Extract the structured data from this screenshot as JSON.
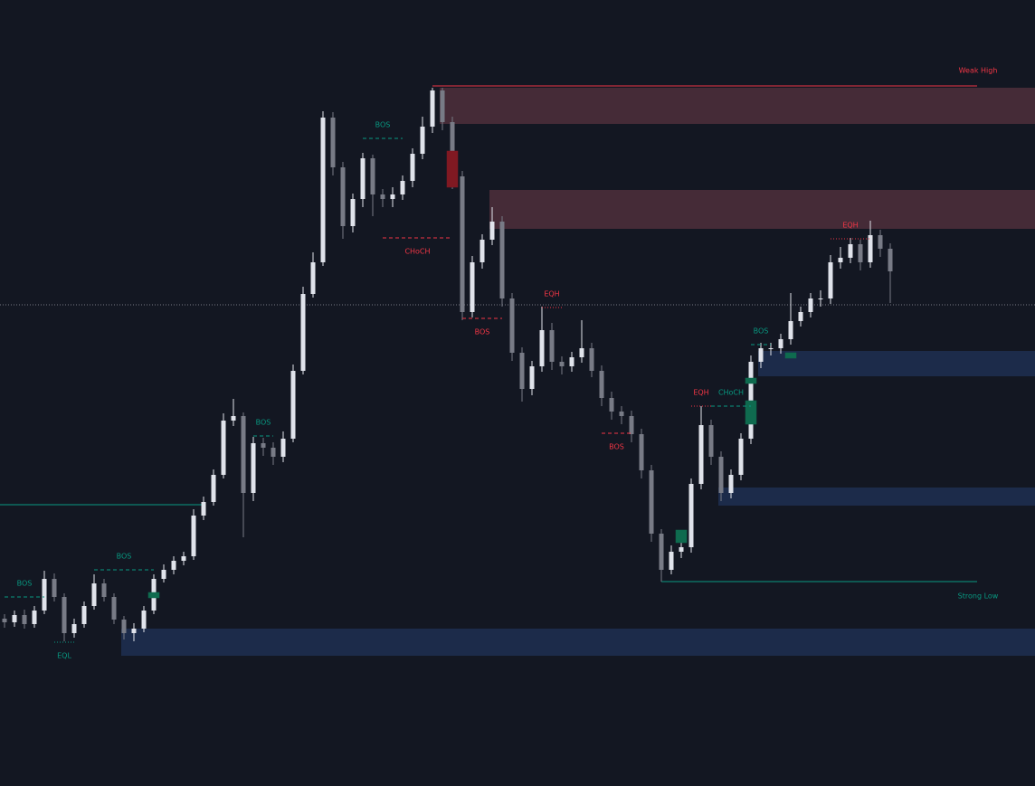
{
  "chart_data": {
    "type": "candlestick",
    "ylim": [
      0,
      869
    ],
    "up_color": "#e0e3eb",
    "down_color": "#787b86",
    "candles": [
      [
        185,
        190,
        175,
        181
      ],
      [
        181,
        194,
        176,
        189
      ],
      [
        189,
        195,
        174,
        179
      ],
      [
        179,
        199,
        175,
        194
      ],
      [
        194,
        238,
        190,
        229
      ],
      [
        229,
        235,
        204,
        209
      ],
      [
        209,
        213,
        160,
        169
      ],
      [
        169,
        185,
        164,
        179
      ],
      [
        179,
        204,
        175,
        199
      ],
      [
        199,
        234,
        195,
        224
      ],
      [
        224,
        229,
        204,
        209
      ],
      [
        209,
        213,
        179,
        184
      ],
      [
        184,
        188,
        162,
        169
      ],
      [
        169,
        180,
        160,
        174
      ],
      [
        174,
        199,
        170,
        194
      ],
      [
        194,
        234,
        190,
        229
      ],
      [
        229,
        245,
        225,
        239
      ],
      [
        239,
        254,
        234,
        249
      ],
      [
        249,
        259,
        244,
        254
      ],
      [
        254,
        306,
        250,
        299
      ],
      [
        299,
        320,
        294,
        314
      ],
      [
        314,
        350,
        310,
        344
      ],
      [
        344,
        412,
        340,
        404
      ],
      [
        404,
        428,
        398,
        409
      ],
      [
        409,
        413,
        275,
        324
      ],
      [
        324,
        386,
        315,
        379
      ],
      [
        379,
        385,
        365,
        374
      ],
      [
        374,
        380,
        355,
        364
      ],
      [
        364,
        392,
        358,
        384
      ],
      [
        384,
        466,
        380,
        459
      ],
      [
        459,
        552,
        455,
        544
      ],
      [
        544,
        590,
        540,
        579
      ],
      [
        579,
        746,
        575,
        739
      ],
      [
        739,
        745,
        675,
        684
      ],
      [
        684,
        690,
        605,
        619
      ],
      [
        619,
        655,
        612,
        649
      ],
      [
        649,
        700,
        640,
        694
      ],
      [
        694,
        698,
        630,
        654
      ],
      [
        654,
        660,
        640,
        649
      ],
      [
        649,
        662,
        640,
        654
      ],
      [
        654,
        675,
        648,
        669
      ],
      [
        669,
        705,
        662,
        699
      ],
      [
        699,
        740,
        693,
        729
      ],
      [
        729,
        772,
        722,
        769
      ],
      [
        769,
        772,
        725,
        734
      ],
      [
        734,
        740,
        660,
        674
      ],
      [
        674,
        680,
        515,
        524
      ],
      [
        524,
        586,
        518,
        579
      ],
      [
        579,
        610,
        572,
        604
      ],
      [
        604,
        640,
        598,
        624
      ],
      [
        624,
        630,
        530,
        539
      ],
      [
        539,
        545,
        470,
        479
      ],
      [
        479,
        485,
        425,
        439
      ],
      [
        439,
        470,
        432,
        464
      ],
      [
        464,
        530,
        458,
        504
      ],
      [
        504,
        512,
        460,
        469
      ],
      [
        469,
        475,
        455,
        464
      ],
      [
        464,
        480,
        458,
        474
      ],
      [
        474,
        515,
        468,
        484
      ],
      [
        484,
        490,
        452,
        459
      ],
      [
        459,
        465,
        420,
        429
      ],
      [
        429,
        436,
        405,
        414
      ],
      [
        414,
        420,
        400,
        409
      ],
      [
        409,
        415,
        380,
        389
      ],
      [
        389,
        395,
        340,
        349
      ],
      [
        349,
        355,
        270,
        279
      ],
      [
        279,
        284,
        226,
        239
      ],
      [
        239,
        266,
        234,
        259
      ],
      [
        259,
        275,
        252,
        264
      ],
      [
        264,
        340,
        258,
        334
      ],
      [
        334,
        420,
        328,
        399
      ],
      [
        399,
        405,
        355,
        364
      ],
      [
        364,
        370,
        315,
        324
      ],
      [
        324,
        350,
        318,
        344
      ],
      [
        344,
        390,
        338,
        384
      ],
      [
        384,
        476,
        378,
        469
      ],
      [
        469,
        490,
        462,
        484
      ],
      [
        484,
        490,
        476,
        484
      ],
      [
        484,
        500,
        478,
        494
      ],
      [
        494,
        545,
        488,
        514
      ],
      [
        514,
        530,
        508,
        524
      ],
      [
        524,
        545,
        518,
        539
      ],
      [
        539,
        548,
        530,
        539
      ],
      [
        539,
        587,
        533,
        579
      ],
      [
        579,
        596,
        572,
        584
      ],
      [
        584,
        606,
        578,
        599
      ],
      [
        599,
        604,
        570,
        579
      ],
      [
        579,
        625,
        573,
        609
      ],
      [
        609,
        615,
        585,
        594
      ],
      [
        594,
        600,
        534,
        569
      ]
    ],
    "price_line": 532,
    "zones": [
      {
        "from": 44,
        "top": 772,
        "bottom": 732,
        "color": "#452b37"
      },
      {
        "from": 49,
        "top": 659,
        "bottom": 616,
        "color": "#452b37"
      },
      {
        "from": 76,
        "top": 481,
        "bottom": 453,
        "color": "#1c2b4a"
      },
      {
        "from": 72,
        "top": 330,
        "bottom": 310,
        "color": "#1c2b4a"
      },
      {
        "from": 12,
        "top": 174,
        "bottom": 144,
        "color": "#1c2b4a"
      }
    ],
    "blocks": [
      {
        "index": 45,
        "top": 702,
        "bottom": 662,
        "color": "#801922"
      },
      {
        "index": 75,
        "top": 426,
        "bottom": 400,
        "color": "#0f6b4f"
      },
      {
        "index": 68,
        "top": 283,
        "bottom": 269,
        "color": "#0f6b4f"
      },
      {
        "index": 15,
        "top": 214,
        "bottom": 208,
        "color": "#0f6b4f"
      },
      {
        "index": 75,
        "top": 451,
        "bottom": 445,
        "color": "#0f6b4f"
      },
      {
        "index": 79,
        "top": 479,
        "bottom": 473,
        "color": "#0f6b4f"
      }
    ],
    "levels": [
      {
        "label": "Weak High",
        "value": 774,
        "from": 43,
        "color": "#f23645"
      },
      {
        "label": "Strong Low",
        "value": 226,
        "from": 66,
        "color": "#089981"
      }
    ],
    "left_line": {
      "value": 311,
      "to": 20,
      "color": "#089981"
    },
    "structures": [
      {
        "label": "BOS",
        "value": 209,
        "from": 0,
        "to": 4,
        "position": "above",
        "style": "dashed",
        "color": "#089981"
      },
      {
        "label": "BOS",
        "value": 239,
        "from": 9,
        "to": 15,
        "position": "above",
        "style": "dashed",
        "color": "#089981"
      },
      {
        "label": "BOS",
        "value": 387,
        "from": 25,
        "to": 27,
        "position": "above",
        "style": "dashed",
        "color": "#089981"
      },
      {
        "label": "BOS",
        "value": 716,
        "from": 36,
        "to": 40,
        "position": "above",
        "style": "dashed",
        "color": "#089981"
      },
      {
        "label": "CHoCH",
        "value": 606,
        "from": 38,
        "to": 45,
        "position": "below",
        "style": "dashed",
        "color": "#f23645"
      },
      {
        "label": "BOS",
        "value": 517,
        "from": 46,
        "to": 50,
        "position": "below",
        "style": "dashed",
        "color": "#f23645"
      },
      {
        "label": "EQH",
        "value": 529,
        "from": 54,
        "to": 56,
        "position": "above",
        "style": "dotted",
        "color": "#f23645"
      },
      {
        "label": "BOS",
        "value": 390,
        "from": 60,
        "to": 63,
        "position": "below",
        "style": "dashed",
        "color": "#f23645"
      },
      {
        "label": "EQH",
        "value": 420,
        "from": 69,
        "to": 71,
        "position": "above",
        "style": "dotted",
        "color": "#f23645"
      },
      {
        "label": "CHoCH",
        "value": 420,
        "from": 71,
        "to": 75,
        "position": "above",
        "style": "dashed",
        "color": "#089981"
      },
      {
        "label": "BOS",
        "value": 488,
        "from": 75,
        "to": 77,
        "position": "above",
        "style": "dashed",
        "color": "#089981"
      },
      {
        "label": "EQH",
        "value": 605,
        "from": 83,
        "to": 87,
        "position": "above",
        "style": "dotted",
        "color": "#f23645"
      },
      {
        "label": "EQL",
        "value": 159,
        "from": 5,
        "to": 7,
        "position": "below",
        "style": "dotted",
        "color": "#089981"
      }
    ]
  }
}
